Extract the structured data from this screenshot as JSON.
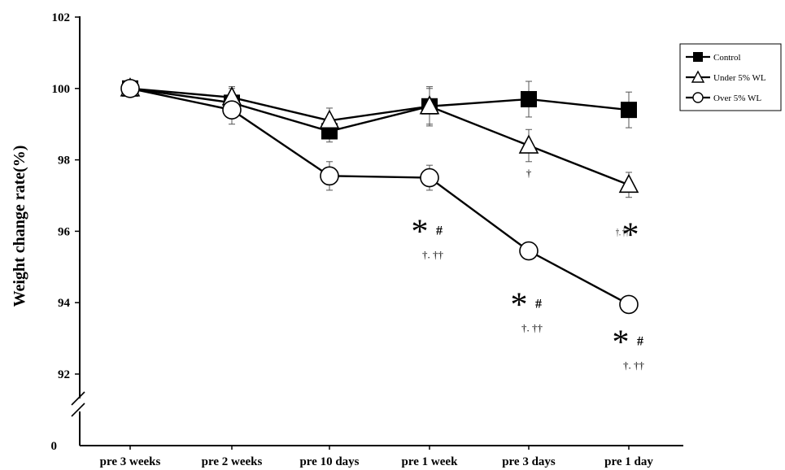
{
  "chart_data": {
    "type": "line",
    "ylabel": "Weight change rate(%)",
    "categories": [
      "pre 3 weeks",
      "pre 2 weeks",
      "pre 10 days",
      "pre 1 week",
      "pre 3 days",
      "pre 1 day"
    ],
    "yticks": [
      "102",
      "100",
      "98",
      "96",
      "94",
      "92"
    ],
    "y_zero_label": "0",
    "ylim": [
      91,
      102
    ],
    "axis_break": true,
    "legend_position": "top-right",
    "series": [
      {
        "name": "Control",
        "marker": "filled-square",
        "values": [
          100.0,
          99.6,
          98.8,
          99.5,
          99.7,
          99.4
        ],
        "error": [
          0,
          0.4,
          0.3,
          0.55,
          0.5,
          0.5
        ]
      },
      {
        "name": "Under 5% WL",
        "marker": "open-triangle",
        "values": [
          100.0,
          99.75,
          99.1,
          99.5,
          98.4,
          97.3
        ],
        "error": [
          0,
          0.3,
          0.35,
          0.5,
          0.45,
          0.35
        ]
      },
      {
        "name": "Over 5% WL",
        "marker": "open-circle",
        "values": [
          100.0,
          99.4,
          97.55,
          97.5,
          95.45,
          93.95
        ],
        "error": [
          0,
          0.4,
          0.4,
          0.35,
          0,
          0
        ]
      }
    ],
    "annotations": [
      {
        "category": "pre 3 days",
        "series": "Under 5% WL",
        "text": "†"
      },
      {
        "category": "pre 1 week",
        "series": "Over 5% WL",
        "star": "*",
        "hash": "#",
        "dagger": "†. ††"
      },
      {
        "category": "pre 3 days",
        "series": "Over 5% WL",
        "star": "*",
        "hash": "#",
        "dagger": "†. ††"
      },
      {
        "category": "pre 1 day",
        "series": "Over 5% WL",
        "star": "*",
        "hash": "#",
        "dagger": "†. ††"
      },
      {
        "category": "pre 1 day",
        "series": "Under 5% WL",
        "star": "*",
        "dagger": "†. ††"
      }
    ]
  }
}
